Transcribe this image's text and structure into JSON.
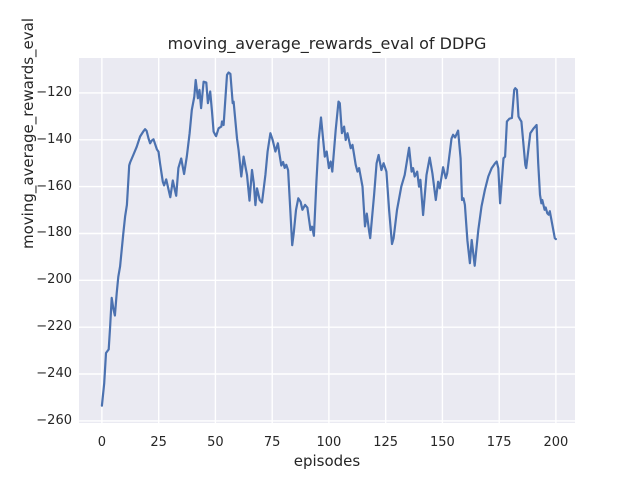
{
  "chart": {
    "title": "moving_average_rewards_eval of DDPG",
    "xlabel": "episodes",
    "ylabel": "moving_average_rewards_eval"
  },
  "chart_data": {
    "type": "line",
    "title": "moving_average_rewards_eval of DDPG",
    "xlabel": "episodes",
    "ylabel": "moving_average_rewards_eval",
    "xlim": [
      -10.1,
      208.4
    ],
    "ylim": [
      -260.9,
      -105.1
    ],
    "xticks": [
      0,
      25,
      50,
      75,
      100,
      125,
      150,
      175,
      200
    ],
    "xtick_labels": [
      "0",
      "25",
      "50",
      "75",
      "100",
      "125",
      "150",
      "175",
      "200"
    ],
    "yticks": [
      -120,
      -140,
      -160,
      -180,
      -200,
      -220,
      -240,
      -260
    ],
    "ytick_labels": [
      "−120",
      "−140",
      "−160",
      "−180",
      "−200",
      "−220",
      "−240",
      "−260"
    ],
    "grid": true,
    "legend": false,
    "line_color": "#4c72b0",
    "plot_bg": "#eaeaf2",
    "grid_color": "#ffffff",
    "text_color": "#262626",
    "series": [
      {
        "name": "moving_average_rewards_eval",
        "points": [
          [
            0,
            -253.5
          ],
          [
            1,
            -244
          ],
          [
            1.8,
            -231
          ],
          [
            3,
            -229.5
          ],
          [
            3.6,
            -220
          ],
          [
            4.3,
            -207.5
          ],
          [
            5,
            -212
          ],
          [
            5.7,
            -215
          ],
          [
            6.5,
            -205.5
          ],
          [
            7.2,
            -198.5
          ],
          [
            8,
            -194
          ],
          [
            8.7,
            -187
          ],
          [
            9.4,
            -180
          ],
          [
            10.2,
            -172.8
          ],
          [
            11,
            -167.8
          ],
          [
            11.3,
            -162.8
          ],
          [
            12,
            -151
          ],
          [
            12.4,
            -149.7
          ],
          [
            13.8,
            -146.5
          ],
          [
            15.3,
            -143
          ],
          [
            16.8,
            -138.6
          ],
          [
            18.2,
            -136.5
          ],
          [
            19,
            -135.5
          ],
          [
            19.7,
            -136.2
          ],
          [
            20.5,
            -139.4
          ],
          [
            21.2,
            -141.5
          ],
          [
            21.9,
            -140.4
          ],
          [
            22.7,
            -139.8
          ],
          [
            24.2,
            -144.1
          ],
          [
            24.9,
            -145.1
          ],
          [
            25.6,
            -150
          ],
          [
            26.8,
            -157.9
          ],
          [
            27.4,
            -159.5
          ],
          [
            28.3,
            -156.9
          ],
          [
            30.1,
            -164.5
          ],
          [
            31.2,
            -157.4
          ],
          [
            32.3,
            -162.1
          ],
          [
            32.7,
            -163.9
          ],
          [
            33.7,
            -152
          ],
          [
            34.9,
            -148
          ],
          [
            36.2,
            -154.6
          ],
          [
            37.4,
            -147.2
          ],
          [
            38.6,
            -137.3
          ],
          [
            39.6,
            -127.3
          ],
          [
            40.7,
            -121.6
          ],
          [
            41.3,
            -114.5
          ],
          [
            42.3,
            -122.3
          ],
          [
            43,
            -118.7
          ],
          [
            43.7,
            -126.5
          ],
          [
            44.8,
            -115.2
          ],
          [
            46,
            -115.6
          ],
          [
            46.7,
            -124.4
          ],
          [
            47.7,
            -119.4
          ],
          [
            48.5,
            -128
          ],
          [
            49.2,
            -136.5
          ],
          [
            50,
            -138
          ],
          [
            50.3,
            -138.5
          ],
          [
            51.4,
            -135.1
          ],
          [
            52.6,
            -134.4
          ],
          [
            52.9,
            -132.2
          ],
          [
            53.6,
            -133.7
          ],
          [
            55.1,
            -112.3
          ],
          [
            55.8,
            -111.3
          ],
          [
            56.6,
            -111.9
          ],
          [
            57.6,
            -124.4
          ],
          [
            58,
            -123.7
          ],
          [
            59.5,
            -139.4
          ],
          [
            60.2,
            -144.4
          ],
          [
            61.4,
            -155.7
          ],
          [
            62.4,
            -147.2
          ],
          [
            63.2,
            -151.4
          ],
          [
            63.9,
            -155
          ],
          [
            65,
            -166
          ],
          [
            66.1,
            -152.9
          ],
          [
            66.9,
            -158.6
          ],
          [
            67.6,
            -167.9
          ],
          [
            68.3,
            -160.7
          ],
          [
            69.5,
            -165.7
          ],
          [
            70.5,
            -166.8
          ],
          [
            72,
            -155
          ],
          [
            73,
            -145
          ],
          [
            74.2,
            -137.2
          ],
          [
            75.2,
            -140
          ],
          [
            76.4,
            -145
          ],
          [
            77.5,
            -141.5
          ],
          [
            78.2,
            -146
          ],
          [
            79,
            -151
          ],
          [
            79.8,
            -149.5
          ],
          [
            80.5,
            -152
          ],
          [
            81.2,
            -150.7
          ],
          [
            82,
            -153
          ],
          [
            83,
            -170
          ],
          [
            83.8,
            -185
          ],
          [
            84.5,
            -180
          ],
          [
            85.5,
            -170
          ],
          [
            86.5,
            -165
          ],
          [
            87.5,
            -166.5
          ],
          [
            88.3,
            -169.9
          ],
          [
            89.5,
            -167.8
          ],
          [
            90.5,
            -169
          ],
          [
            91.9,
            -178.5
          ],
          [
            92.6,
            -177.1
          ],
          [
            93.4,
            -181
          ],
          [
            94.5,
            -158
          ],
          [
            95.5,
            -140
          ],
          [
            96.5,
            -130.5
          ],
          [
            98.2,
            -147.2
          ],
          [
            99,
            -145
          ],
          [
            100,
            -152.1
          ],
          [
            100.8,
            -149.3
          ],
          [
            101.5,
            -153.6
          ],
          [
            103,
            -135.8
          ],
          [
            104.2,
            -123.7
          ],
          [
            104.8,
            -124.4
          ],
          [
            105.7,
            -137.2
          ],
          [
            106.7,
            -134.4
          ],
          [
            107.4,
            -140.1
          ],
          [
            108.2,
            -137.2
          ],
          [
            109.6,
            -143.6
          ],
          [
            110.4,
            -142.2
          ],
          [
            111.8,
            -150.7
          ],
          [
            112.6,
            -153.6
          ],
          [
            113.3,
            -152.1
          ],
          [
            114.8,
            -160
          ],
          [
            115.9,
            -177
          ],
          [
            116.7,
            -171.5
          ],
          [
            117.7,
            -179
          ],
          [
            118.2,
            -182
          ],
          [
            119.9,
            -163.5
          ],
          [
            121,
            -150
          ],
          [
            121.9,
            -146.5
          ],
          [
            123.1,
            -152.9
          ],
          [
            124.1,
            -150
          ],
          [
            125.3,
            -153.6
          ],
          [
            126.5,
            -170
          ],
          [
            127.8,
            -184.5
          ],
          [
            128.5,
            -182
          ],
          [
            130,
            -170
          ],
          [
            131.9,
            -160
          ],
          [
            133.4,
            -155
          ],
          [
            135.3,
            -143.4
          ],
          [
            136.4,
            -153.6
          ],
          [
            137.1,
            -152.1
          ],
          [
            137.8,
            -155.7
          ],
          [
            138.9,
            -153.6
          ],
          [
            139.7,
            -160
          ],
          [
            140.3,
            -157.1
          ],
          [
            141.5,
            -172.1
          ],
          [
            143,
            -155
          ],
          [
            144.4,
            -147.6
          ],
          [
            145.6,
            -154.3
          ],
          [
            147.1,
            -165.7
          ],
          [
            148.1,
            -157.9
          ],
          [
            148.8,
            -160.7
          ],
          [
            150.3,
            -151.7
          ],
          [
            151.5,
            -156.4
          ],
          [
            152.1,
            -154.3
          ],
          [
            154,
            -139.5
          ],
          [
            154.7,
            -137.9
          ],
          [
            155.6,
            -139
          ],
          [
            156.9,
            -136.1
          ],
          [
            158,
            -148
          ],
          [
            158.6,
            -165.7
          ],
          [
            159.3,
            -165
          ],
          [
            159.9,
            -167.8
          ],
          [
            161,
            -183
          ],
          [
            162.1,
            -192.7
          ],
          [
            162.9,
            -182.8
          ],
          [
            164.2,
            -193.8
          ],
          [
            165.8,
            -178.5
          ],
          [
            167.2,
            -168.5
          ],
          [
            168.7,
            -161.4
          ],
          [
            170.2,
            -155.7
          ],
          [
            171.7,
            -152.1
          ],
          [
            173.2,
            -150
          ],
          [
            173.9,
            -149.3
          ],
          [
            174.6,
            -152.1
          ],
          [
            175.4,
            -167.1
          ],
          [
            176.9,
            -147.9
          ],
          [
            177.6,
            -147.2
          ],
          [
            178.4,
            -132.2
          ],
          [
            179.5,
            -131
          ],
          [
            180.6,
            -130.7
          ],
          [
            181.6,
            -118.7
          ],
          [
            182.1,
            -118
          ],
          [
            182.8,
            -118.7
          ],
          [
            183.5,
            -130.1
          ],
          [
            184.3,
            -131.5
          ],
          [
            184.8,
            -132.2
          ],
          [
            186.5,
            -150.7
          ],
          [
            186.9,
            -152.1
          ],
          [
            188.7,
            -137.2
          ],
          [
            190.2,
            -135.1
          ],
          [
            191.5,
            -133.7
          ],
          [
            192.2,
            -150
          ],
          [
            193,
            -163.5
          ],
          [
            193.6,
            -167.1
          ],
          [
            194,
            -165.7
          ],
          [
            195,
            -169.9
          ],
          [
            195.5,
            -168.9
          ],
          [
            196.2,
            -171.4
          ],
          [
            196.8,
            -172
          ],
          [
            197.3,
            -170.5
          ],
          [
            199.5,
            -182
          ],
          [
            200,
            -182.4
          ]
        ]
      }
    ]
  }
}
